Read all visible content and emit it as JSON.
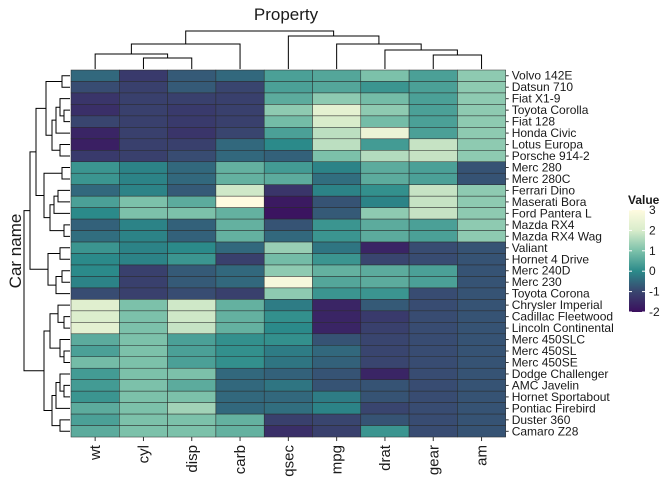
{
  "chart_data": {
    "type": "heatmap",
    "title": "Property",
    "xlabel": "Property",
    "ylabel": "Car name",
    "x": [
      "wt",
      "cyl",
      "disp",
      "carb",
      "qsec",
      "mpg",
      "drat",
      "gear",
      "am"
    ],
    "y": [
      "Volvo 142E",
      "Datsun 710",
      "Fiat X1-9",
      "Toyota Corolla",
      "Fiat 128",
      "Honda Civic",
      "Lotus Europa",
      "Porsche 914-2",
      "Merc 280",
      "Merc 280C",
      "Ferrari Dino",
      "Maserati Bora",
      "Ford Pantera L",
      "Mazda RX4",
      "Mazda RX4 Wag",
      "Valiant",
      "Hornet 4 Drive",
      "Merc 240D",
      "Merc 230",
      "Toyota Corona",
      "Chrysler Imperial",
      "Cadillac Fleetwood",
      "Lincoln Continental",
      "Merc 450SLC",
      "Merc 450SL",
      "Merc 450SE",
      "Dodge Challenger",
      "AMC Javelin",
      "Hornet Sportabout",
      "Pontiac Firebird",
      "Duster 360",
      "Camaro Z28"
    ],
    "values": [
      [
        -0.5,
        -1.2,
        -0.7,
        -0.5,
        0.4,
        0.5,
        1.0,
        0.4,
        1.2
      ],
      [
        -0.9,
        -1.1,
        -0.7,
        -1.0,
        0.4,
        0.5,
        0.2,
        0.4,
        1.2
      ],
      [
        -1.3,
        -1.1,
        -1.1,
        -1.1,
        0.6,
        1.2,
        0.9,
        0.4,
        1.2
      ],
      [
        -1.4,
        -1.1,
        -1.2,
        -1.1,
        1.2,
        2.3,
        1.2,
        0.4,
        1.2
      ],
      [
        -1.0,
        -1.1,
        -1.2,
        -1.1,
        0.9,
        2.0,
        0.9,
        0.4,
        1.2
      ],
      [
        -1.6,
        -1.1,
        -1.3,
        -1.0,
        0.4,
        1.7,
        2.5,
        0.4,
        1.2
      ],
      [
        -1.7,
        -1.1,
        -1.1,
        -0.5,
        0.0,
        1.7,
        0.3,
        1.8,
        1.2
      ],
      [
        -1.2,
        -1.1,
        -0.9,
        -0.5,
        -0.6,
        1.0,
        1.6,
        1.8,
        1.2
      ],
      [
        0.2,
        -0.1,
        -0.5,
        0.7,
        0.3,
        -0.1,
        0.6,
        0.4,
        -0.8
      ],
      [
        0.2,
        -0.1,
        -0.5,
        0.7,
        0.6,
        -0.4,
        0.6,
        0.4,
        -0.8
      ],
      [
        -0.5,
        -0.1,
        -0.7,
        1.9,
        -1.3,
        -0.1,
        0.1,
        1.8,
        1.2
      ],
      [
        0.4,
        1.0,
        0.6,
        3.2,
        -1.8,
        -0.8,
        -0.1,
        1.8,
        1.2
      ],
      [
        -0.0,
        1.0,
        1.0,
        0.7,
        -1.9,
        -0.7,
        1.2,
        1.8,
        1.2
      ],
      [
        -0.6,
        -0.1,
        -0.6,
        0.7,
        -0.8,
        0.2,
        0.6,
        0.4,
        1.2
      ],
      [
        -0.4,
        -0.1,
        -0.6,
        0.7,
        -0.5,
        0.2,
        0.6,
        0.4,
        1.2
      ],
      [
        0.2,
        -0.1,
        -0.0,
        -0.5,
        1.3,
        -0.3,
        -1.6,
        -0.9,
        -0.8
      ],
      [
        -0.0,
        -0.1,
        0.2,
        -1.1,
        0.9,
        0.2,
        -1.0,
        -0.9,
        -0.8
      ],
      [
        -0.0,
        -1.1,
        -0.7,
        -0.5,
        1.2,
        0.7,
        0.6,
        0.4,
        -0.8
      ],
      [
        -0.1,
        -1.1,
        -0.7,
        -0.5,
        2.8,
        0.5,
        0.6,
        0.4,
        -0.8
      ],
      [
        -0.9,
        -1.1,
        -0.9,
        -1.1,
        1.2,
        0.2,
        0.2,
        -0.9,
        -0.8
      ],
      [
        2.2,
        1.0,
        1.9,
        0.7,
        -0.2,
        -1.6,
        -0.7,
        -0.9,
        -0.8
      ],
      [
        2.1,
        1.0,
        1.9,
        0.7,
        0.1,
        -1.6,
        -1.2,
        -0.9,
        -0.8
      ],
      [
        2.3,
        1.0,
        1.8,
        0.7,
        -0.0,
        -1.6,
        -1.1,
        -0.9,
        -0.8
      ],
      [
        0.6,
        1.0,
        0.4,
        0.1,
        0.1,
        -0.8,
        -1.0,
        -0.9,
        -0.8
      ],
      [
        0.4,
        1.0,
        0.4,
        0.1,
        -0.2,
        -0.5,
        -1.0,
        -0.9,
        -0.8
      ],
      [
        0.9,
        1.0,
        0.4,
        0.1,
        -0.3,
        -0.6,
        -1.0,
        -0.9,
        -0.8
      ],
      [
        0.3,
        1.0,
        1.0,
        -0.5,
        -0.6,
        -0.8,
        -1.6,
        -0.9,
        -0.8
      ],
      [
        0.3,
        1.0,
        0.6,
        -0.5,
        -0.3,
        -0.8,
        -0.8,
        -0.9,
        -0.8
      ],
      [
        0.2,
        1.0,
        1.0,
        -0.5,
        -0.5,
        -0.2,
        -0.8,
        -0.9,
        -0.8
      ],
      [
        0.6,
        1.0,
        1.4,
        -0.5,
        -0.4,
        -0.1,
        -1.0,
        -0.9,
        -0.8
      ],
      [
        0.4,
        1.0,
        1.0,
        0.7,
        -1.1,
        -1.0,
        -0.8,
        -0.9,
        -0.8
      ],
      [
        0.6,
        1.0,
        1.0,
        0.7,
        -1.4,
        -1.1,
        0.2,
        -0.9,
        -0.8
      ]
    ],
    "colorbar": {
      "label": "Value",
      "ticks": [
        "3",
        "2",
        "1",
        "0",
        "-1",
        "-2"
      ],
      "range": [
        -2,
        3
      ],
      "stops": [
        "#3b0f5e",
        "#39456f",
        "#2b8a8a",
        "#7cc1aa",
        "#d8eccb",
        "#fffbe0"
      ]
    },
    "grid": false,
    "legend": "right",
    "dendrograms": [
      "top",
      "left"
    ]
  }
}
